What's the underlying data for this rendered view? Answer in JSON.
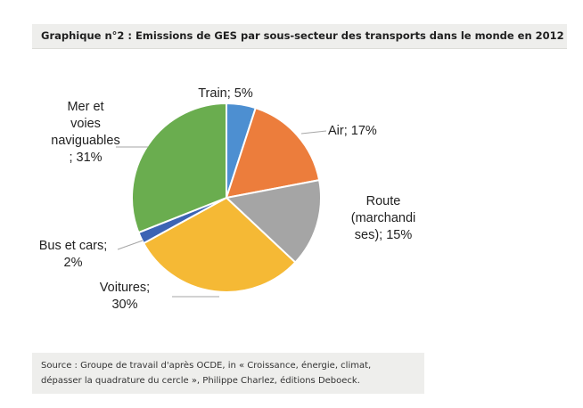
{
  "header": {
    "title": "Graphique n°2 : Emissions de GES par sous-secteur des transports dans le monde en 2012"
  },
  "chart_data": {
    "type": "pie",
    "unit": "%",
    "slices": [
      {
        "label": "Train",
        "value": 5,
        "color": "#4d8fd1",
        "label_lines": [
          "Train; 5%"
        ]
      },
      {
        "label": "Air",
        "value": 17,
        "color": "#ec7d3c",
        "label_lines": [
          "Air; 17%"
        ]
      },
      {
        "label": "Route (marchandises)",
        "value": 15,
        "color": "#a5a5a5",
        "label_lines": [
          "Route",
          "(marchandi",
          "ses); 15%"
        ]
      },
      {
        "label": "Voitures",
        "value": 30,
        "color": "#f5b935",
        "label_lines": [
          "Voitures;",
          "30%"
        ]
      },
      {
        "label": "Bus et cars",
        "value": 2,
        "color": "#3c64b4",
        "label_lines": [
          "Bus et cars;",
          "2%"
        ]
      },
      {
        "label": "Mer et voies navigables",
        "value": 31,
        "color": "#6aad4f",
        "label_lines": [
          "Mer et",
          "voies",
          "naviguables",
          "; 31%"
        ]
      }
    ]
  },
  "footer": {
    "source_line1": "Source : Groupe de travail d'après OCDE, in « Croissance, énergie, climat,",
    "source_line2": "dépasser la quadrature du cercle », Philippe Charlez, éditions Deboeck."
  }
}
